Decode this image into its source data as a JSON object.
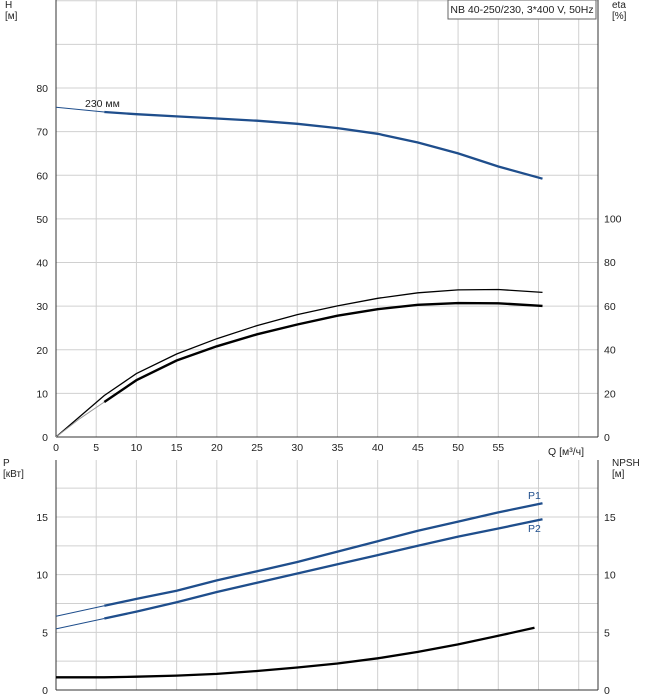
{
  "chart_data": [
    {
      "type": "line",
      "title": "NB 40-250/230, 3*400 V, 50Hz",
      "xlabel": "Q [м³/ч]",
      "ylabel_left": "H\n[м]",
      "ylabel_right": "eta\n[%]",
      "xlim": [
        0,
        65
      ],
      "ylim_left": [
        0,
        90
      ],
      "ylim_right": [
        0,
        180
      ],
      "x_ticks": [
        0,
        5,
        10,
        15,
        20,
        25,
        30,
        35,
        40,
        45,
        50,
        55
      ],
      "y_ticks_left": [
        0,
        10,
        20,
        30,
        40,
        50,
        60,
        70,
        80
      ],
      "y_ticks_right": [
        0,
        20,
        40,
        60,
        80,
        100
      ],
      "grid": true,
      "series": [
        {
          "name": "230 мм",
          "axis": "left",
          "color": "#1f4e8c",
          "x": [
            0,
            6,
            10,
            15,
            20,
            25,
            30,
            35,
            40,
            45,
            50,
            55,
            60.5
          ],
          "y": [
            75.6,
            74.5,
            74.0,
            73.5,
            73.0,
            72.5,
            71.8,
            70.8,
            69.5,
            67.5,
            65.0,
            62.0,
            59.2
          ]
        },
        {
          "name": "",
          "axis": "right",
          "color": "#000000",
          "x": [
            0,
            6,
            10,
            15,
            20,
            25,
            30,
            35,
            40,
            45,
            50,
            55,
            60.5
          ],
          "y": [
            0,
            19,
            29,
            38,
            45,
            51,
            56,
            60,
            63.5,
            66,
            67.3,
            67.5,
            66.2
          ]
        },
        {
          "name": "",
          "axis": "right",
          "color": "#000000",
          "x": [
            6,
            10,
            15,
            20,
            25,
            30,
            35,
            40,
            45,
            50,
            55,
            60.5
          ],
          "y": [
            16,
            26,
            35,
            41.5,
            47,
            51.5,
            55.5,
            58.5,
            60.5,
            61.3,
            61.2,
            60
          ]
        }
      ]
    },
    {
      "type": "line",
      "xlabel": "",
      "ylabel_left": "P\n[кВт]",
      "ylabel_right": "NPSH\n[м]",
      "xlim": [
        0,
        65
      ],
      "ylim_left": [
        0,
        20
      ],
      "ylim_right": [
        0,
        20
      ],
      "y_ticks_left": [
        0,
        5,
        10,
        15
      ],
      "y_ticks_right": [
        0,
        5,
        10,
        15
      ],
      "grid": true,
      "series": [
        {
          "name": "P1",
          "axis": "left",
          "color": "#1f4e8c",
          "x": [
            0,
            6,
            10,
            15,
            20,
            25,
            30,
            35,
            40,
            45,
            50,
            55,
            60.5
          ],
          "y": [
            6.4,
            7.3,
            7.9,
            8.6,
            9.5,
            10.3,
            11.1,
            12.0,
            12.9,
            13.8,
            14.6,
            15.4,
            16.2
          ]
        },
        {
          "name": "P2",
          "axis": "left",
          "color": "#1f4e8c",
          "x": [
            0,
            6,
            10,
            15,
            20,
            25,
            30,
            35,
            40,
            45,
            50,
            55,
            60.5
          ],
          "y": [
            5.3,
            6.2,
            6.8,
            7.6,
            8.5,
            9.3,
            10.1,
            10.9,
            11.7,
            12.5,
            13.3,
            14.0,
            14.8
          ]
        },
        {
          "name": "",
          "axis": "right",
          "color": "#000000",
          "x": [
            0,
            6,
            10,
            15,
            20,
            25,
            30,
            35,
            40,
            45,
            50,
            55,
            59.5
          ],
          "y": [
            1.1,
            1.1,
            1.15,
            1.25,
            1.4,
            1.65,
            1.95,
            2.3,
            2.75,
            3.3,
            3.95,
            4.7,
            5.4
          ]
        }
      ]
    }
  ]
}
